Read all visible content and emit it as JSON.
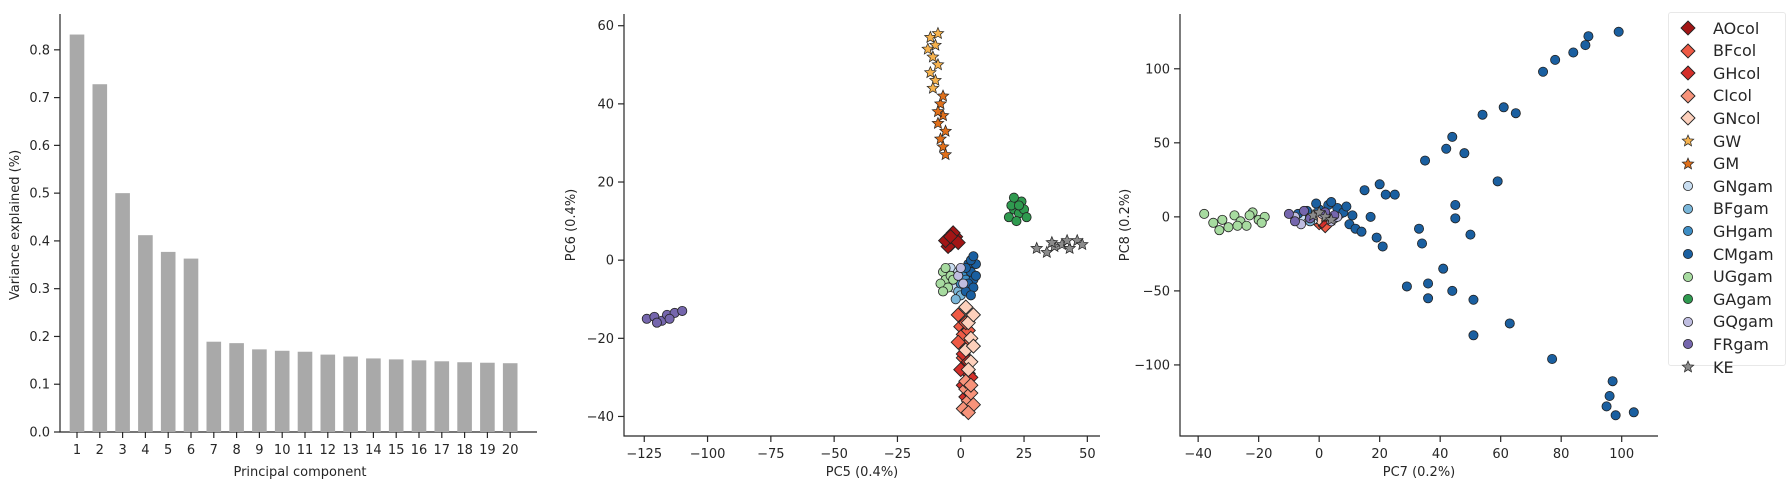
{
  "chart_data": [
    {
      "type": "bar",
      "xlabel": "Principal component",
      "ylabel": "Variance explained (%)",
      "categories": [
        "1",
        "2",
        "3",
        "4",
        "5",
        "6",
        "7",
        "8",
        "9",
        "10",
        "11",
        "12",
        "13",
        "14",
        "15",
        "16",
        "17",
        "18",
        "19",
        "20"
      ],
      "values": [
        0.832,
        0.728,
        0.5,
        0.412,
        0.377,
        0.363,
        0.189,
        0.186,
        0.173,
        0.17,
        0.168,
        0.162,
        0.158,
        0.154,
        0.152,
        0.15,
        0.148,
        0.146,
        0.145,
        0.144
      ],
      "ylim": [
        0,
        0.875
      ],
      "yticks": [
        0.0,
        0.1,
        0.2,
        0.3,
        0.4,
        0.5,
        0.6,
        0.7,
        0.8
      ],
      "color": "#a9a9a9"
    },
    {
      "type": "scatter",
      "xlabel": "PC5 (0.4%)",
      "ylabel": "PC6 (0.4%)",
      "xlim": [
        -133,
        55
      ],
      "ylim": [
        -45,
        63
      ],
      "xticks": [
        -125,
        -100,
        -75,
        -50,
        -25,
        0,
        25,
        50
      ],
      "yticks": [
        -40,
        -20,
        0,
        20,
        40,
        60
      ],
      "series": [
        {
          "name": "AOcol",
          "points": [
            [
              -4,
              4
            ],
            [
              -3,
              5.5
            ],
            [
              -5,
              3.5
            ],
            [
              -2,
              6
            ],
            [
              -6,
              5
            ],
            [
              -3,
              7
            ],
            [
              -4,
              6
            ],
            [
              -1,
              4.5
            ]
          ]
        },
        {
          "name": "BFcol",
          "points": [
            [
              -1,
              -14
            ],
            [
              0,
              -17
            ],
            [
              1,
              -19
            ],
            [
              2,
              -22
            ],
            [
              -1,
              -21
            ],
            [
              1,
              -25
            ],
            [
              3,
              -18
            ],
            [
              2,
              -16
            ]
          ]
        },
        {
          "name": "GHcol",
          "points": [
            [
              1,
              -24
            ],
            [
              2,
              -27
            ],
            [
              3,
              -29
            ],
            [
              1,
              -32
            ],
            [
              4,
              -30
            ],
            [
              2,
              -35
            ],
            [
              3,
              -26
            ],
            [
              0,
              -28
            ]
          ]
        },
        {
          "name": "CIcol",
          "points": [
            [
              2,
              -33
            ],
            [
              3,
              -36
            ],
            [
              1,
              -38
            ],
            [
              4,
              -34
            ],
            [
              5,
              -37
            ],
            [
              2,
              -31
            ],
            [
              3,
              -39
            ],
            [
              4,
              -32
            ]
          ]
        },
        {
          "name": "GNcol",
          "points": [
            [
              3,
              -16
            ],
            [
              4,
              -20
            ],
            [
              2,
              -23
            ],
            [
              5,
              -14
            ],
            [
              4,
              -26
            ],
            [
              3,
              -28
            ],
            [
              5,
              -22
            ],
            [
              2,
              -12
            ]
          ]
        },
        {
          "name": "GW",
          "points": [
            [
              -12,
              57
            ],
            [
              -10,
              55
            ],
            [
              -11,
              52
            ],
            [
              -9,
              50
            ],
            [
              -12,
              48
            ],
            [
              -10,
              46
            ],
            [
              -11,
              44
            ],
            [
              -9,
              58
            ],
            [
              -13,
              54
            ]
          ]
        },
        {
          "name": "GM",
          "points": [
            [
              -8,
              40
            ],
            [
              -7,
              37
            ],
            [
              -9,
              35
            ],
            [
              -6,
              33
            ],
            [
              -8,
              31
            ],
            [
              -7,
              29
            ],
            [
              -6,
              27
            ],
            [
              -9,
              38
            ],
            [
              -7,
              42
            ]
          ]
        },
        {
          "name": "GNgam",
          "points": [
            [
              -5,
              -3
            ],
            [
              -3,
              -4
            ],
            [
              -2,
              -6
            ],
            [
              -6,
              -5
            ],
            [
              -4,
              -2
            ],
            [
              -1,
              -3
            ],
            [
              -3,
              -7
            ],
            [
              0,
              -5
            ]
          ]
        },
        {
          "name": "BFgam",
          "points": [
            [
              -1,
              -8
            ],
            [
              0,
              -9
            ],
            [
              -2,
              -10
            ]
          ]
        },
        {
          "name": "GHgam",
          "points": [
            [
              1,
              -3
            ],
            [
              2,
              -5
            ],
            [
              0,
              -6
            ],
            [
              3,
              -2
            ]
          ]
        },
        {
          "name": "CMgam",
          "points": [
            [
              3,
              -1
            ],
            [
              4,
              -3
            ],
            [
              5,
              -5
            ],
            [
              2,
              -2
            ],
            [
              6,
              -1
            ],
            [
              4,
              0
            ],
            [
              3,
              -6
            ],
            [
              5,
              -7
            ],
            [
              2,
              -8
            ],
            [
              6,
              -4
            ],
            [
              4,
              -9
            ],
            [
              5,
              1
            ]
          ]
        },
        {
          "name": "UGgam",
          "points": [
            [
              -7,
              -3
            ],
            [
              -6,
              -5
            ],
            [
              -8,
              -6
            ],
            [
              -5,
              -7
            ],
            [
              -4,
              -4
            ],
            [
              -7,
              -8
            ],
            [
              -3,
              -5
            ],
            [
              -6,
              -2
            ]
          ]
        },
        {
          "name": "GAgam",
          "points": [
            [
              19,
              11
            ],
            [
              21,
              13
            ],
            [
              23,
              12
            ],
            [
              20,
              14
            ],
            [
              24,
              15
            ],
            [
              22,
              10
            ],
            [
              25,
              13
            ],
            [
              21,
              16
            ],
            [
              26,
              11
            ],
            [
              23,
              14
            ]
          ]
        },
        {
          "name": "GQgam",
          "points": [
            [
              -1,
              -4
            ],
            [
              0,
              -2
            ],
            [
              1,
              -6
            ]
          ]
        },
        {
          "name": "FRgam",
          "points": [
            [
              -124,
              -15
            ],
            [
              -121,
              -14.5
            ],
            [
              -118,
              -15.5
            ],
            [
              -116,
              -14
            ],
            [
              -113,
              -13.5
            ],
            [
              -110,
              -13
            ],
            [
              -120,
              -16
            ],
            [
              -115,
              -15
            ]
          ]
        },
        {
          "name": "KE",
          "points": [
            [
              30,
              3
            ],
            [
              34,
              2
            ],
            [
              37,
              3.5
            ],
            [
              40,
              4
            ],
            [
              43,
              3
            ],
            [
              46,
              5
            ],
            [
              48,
              4
            ],
            [
              36,
              4.5
            ],
            [
              42,
              5
            ]
          ]
        }
      ]
    },
    {
      "type": "scatter",
      "xlabel": "PC7 (0.2%)",
      "ylabel": "PC8 (0.2%)",
      "xlim": [
        -46,
        112
      ],
      "ylim": [
        -148,
        137
      ],
      "xticks": [
        -40,
        -20,
        0,
        20,
        40,
        60,
        80,
        100
      ],
      "yticks": [
        -100,
        -50,
        0,
        50,
        100
      ],
      "series": [
        {
          "name": "AOcol",
          "points": [
            [
              -1,
              -2
            ]
          ]
        },
        {
          "name": "BFcol",
          "points": [
            [
              0,
              -4
            ],
            [
              2,
              -6
            ]
          ]
        },
        {
          "name": "GHcol",
          "points": [
            [
              1,
              -3
            ]
          ]
        },
        {
          "name": "CIcol",
          "points": [
            [
              -1,
              0
            ]
          ]
        },
        {
          "name": "GNcol",
          "points": [
            [
              0,
              -1
            ]
          ]
        },
        {
          "name": "GW",
          "points": [
            [
              2,
              1
            ],
            [
              4,
              -1
            ]
          ]
        },
        {
          "name": "GM",
          "points": [
            [
              3,
              0
            ]
          ]
        },
        {
          "name": "GNgam",
          "points": [
            [
              -4,
              2
            ],
            [
              -2,
              -2
            ],
            [
              -6,
              0
            ]
          ]
        },
        {
          "name": "BFgam",
          "points": [
            [
              -3,
              -3
            ]
          ]
        },
        {
          "name": "GHgam",
          "points": [
            [
              5,
              -1
            ],
            [
              7,
              2
            ]
          ]
        },
        {
          "name": "CMgam",
          "points": [
            [
              -7,
              2
            ],
            [
              -4,
              4
            ],
            [
              0,
              5
            ],
            [
              3,
              8
            ],
            [
              6,
              6
            ],
            [
              8,
              3
            ],
            [
              10,
              -5
            ],
            [
              12,
              -8
            ],
            [
              14,
              -10
            ],
            [
              17,
              0
            ],
            [
              19,
              -14
            ],
            [
              21,
              -20
            ],
            [
              29,
              -47
            ],
            [
              33,
              -8
            ],
            [
              34,
              -18
            ],
            [
              36,
              -45
            ],
            [
              36,
              -55
            ],
            [
              41,
              -35
            ],
            [
              44,
              -50
            ],
            [
              45,
              8
            ],
            [
              45,
              -1
            ],
            [
              50,
              -12
            ],
            [
              51,
              -56
            ],
            [
              51,
              -80
            ],
            [
              44,
              54
            ],
            [
              42,
              46
            ],
            [
              48,
              43
            ],
            [
              35,
              38
            ],
            [
              54,
              69
            ],
            [
              59,
              24
            ],
            [
              61,
              74
            ],
            [
              63,
              -72
            ],
            [
              65,
              70
            ],
            [
              74,
              98
            ],
            [
              77,
              -96
            ],
            [
              78,
              106
            ],
            [
              84,
              111
            ],
            [
              88,
              116
            ],
            [
              89,
              122
            ],
            [
              95,
              -128
            ],
            [
              96,
              -121
            ],
            [
              97,
              -111
            ],
            [
              99,
              125
            ],
            [
              104,
              -132
            ],
            [
              98,
              -134
            ],
            [
              15,
              18
            ],
            [
              22,
              15
            ],
            [
              20,
              22
            ],
            [
              25,
              15
            ],
            [
              4,
              10
            ],
            [
              -1,
              9
            ],
            [
              9,
              7
            ],
            [
              11,
              1
            ]
          ]
        },
        {
          "name": "UGgam",
          "points": [
            [
              -38,
              2
            ],
            [
              -35,
              -4
            ],
            [
              -32,
              -2
            ],
            [
              -30,
              -7
            ],
            [
              -28,
              1
            ],
            [
              -26,
              -3
            ],
            [
              -24,
              -6
            ],
            [
              -22,
              3
            ],
            [
              -20,
              -2
            ],
            [
              -18,
              0
            ],
            [
              -33,
              -9
            ],
            [
              -27,
              -6
            ],
            [
              -23,
              1
            ],
            [
              -19,
              -4
            ]
          ]
        },
        {
          "name": "GAgam",
          "points": []
        },
        {
          "name": "GQgam",
          "points": [
            [
              -8,
              0
            ],
            [
              -6,
              -5
            ],
            [
              1,
              2
            ],
            [
              4,
              -3
            ],
            [
              6,
              0
            ]
          ]
        },
        {
          "name": "FRgam",
          "points": [
            [
              -10,
              2
            ],
            [
              -8,
              -3
            ],
            [
              -5,
              4
            ],
            [
              -3,
              -1
            ],
            [
              2,
              3
            ],
            [
              5,
              1
            ]
          ]
        },
        {
          "name": "KE",
          "points": [
            [
              -2,
              1
            ],
            [
              0,
              3
            ],
            [
              2,
              0
            ],
            [
              4,
              -2
            ]
          ]
        }
      ]
    }
  ],
  "legend": [
    {
      "name": "AOcol",
      "marker": "diamond",
      "color": "#a31515"
    },
    {
      "name": "BFcol",
      "marker": "diamond",
      "color": "#ee5a45"
    },
    {
      "name": "GHcol",
      "marker": "diamond",
      "color": "#d42f2a"
    },
    {
      "name": "CIcol",
      "marker": "diamond",
      "color": "#f7937a"
    },
    {
      "name": "GNcol",
      "marker": "diamond",
      "color": "#fdd0bc"
    },
    {
      "name": "GW",
      "marker": "star",
      "color": "#f6b24d"
    },
    {
      "name": "GM",
      "marker": "star",
      "color": "#e0701b"
    },
    {
      "name": "GNgam",
      "marker": "circle",
      "color": "#c8ddf0"
    },
    {
      "name": "BFgam",
      "marker": "circle",
      "color": "#7ab6d9"
    },
    {
      "name": "GHgam",
      "marker": "circle",
      "color": "#3d8dc4"
    },
    {
      "name": "CMgam",
      "marker": "circle",
      "color": "#1a5fa0"
    },
    {
      "name": "UGgam",
      "marker": "circle",
      "color": "#a7dba0"
    },
    {
      "name": "GAgam",
      "marker": "circle",
      "color": "#2f9a4f"
    },
    {
      "name": "GQgam",
      "marker": "circle",
      "color": "#bfbde0"
    },
    {
      "name": "FRgam",
      "marker": "circle",
      "color": "#7566ad"
    },
    {
      "name": "KE",
      "marker": "star",
      "color": "#8c8c8c"
    }
  ]
}
